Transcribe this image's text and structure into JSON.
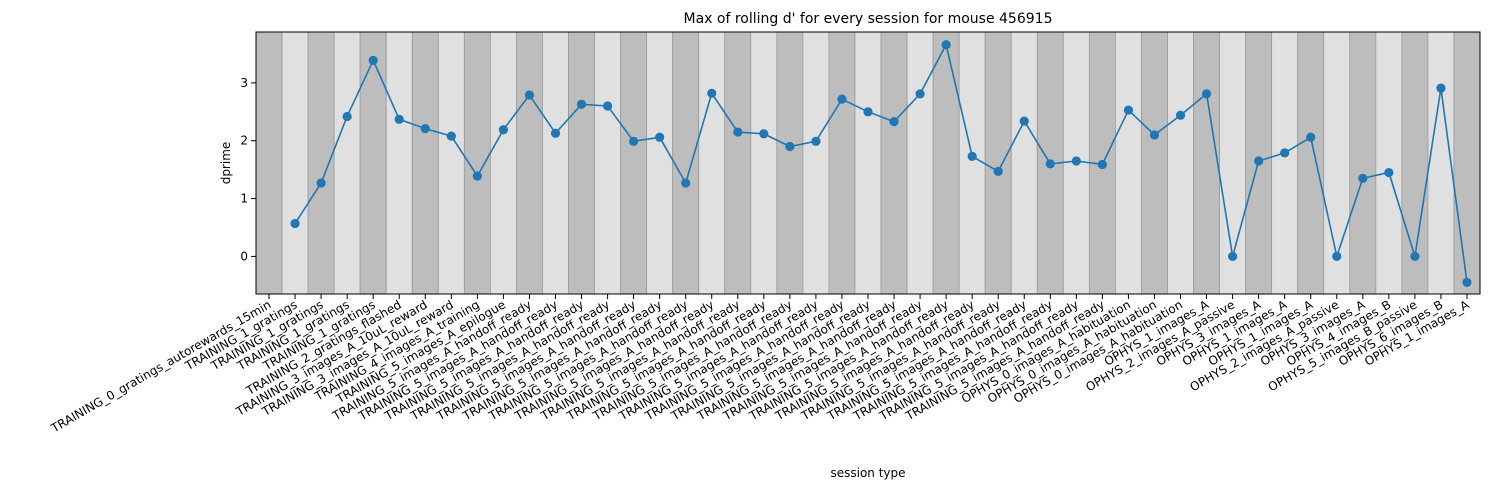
{
  "chart_data": {
    "type": "line",
    "title": "Max of rolling d' for every session for mouse 456915",
    "xlabel": "session type",
    "ylabel": "dprime",
    "ylim": [
      -0.65,
      3.88
    ],
    "yticks": [
      0,
      1,
      2,
      3
    ],
    "grid": false,
    "background_bands": {
      "colors": [
        "#bdbdbd",
        "#e0e0e0"
      ],
      "pattern": "alternating"
    },
    "line_color": "#1f77b4",
    "marker": "circle",
    "categories": [
      "TRAINING_0_gratings_autorewards_15min",
      "TRAINING_1_gratings",
      "TRAINING_1_gratings",
      "TRAINING_1_gratings",
      "TRAINING_1_gratings",
      "TRAINING_2_gratings_flashed",
      "TRAINING_3_images_A_10uL_reward",
      "TRAINING_3_images_A_10uL_reward",
      "TRAINING_4_images_A_training",
      "TRAINING_5_images_A_epilogue",
      "TRAINING_5_images_A_handoff_ready",
      "TRAINING_5_images_A_handoff_ready",
      "TRAINING_5_images_A_handoff_ready",
      "TRAINING_5_images_A_handoff_ready",
      "TRAINING_5_images_A_handoff_ready",
      "TRAINING_5_images_A_handoff_ready",
      "TRAINING_5_images_A_handoff_ready",
      "TRAINING_5_images_A_handoff_ready",
      "TRAINING_5_images_A_handoff_ready",
      "TRAINING_5_images_A_handoff_ready",
      "TRAINING_5_images_A_handoff_ready",
      "TRAINING_5_images_A_handoff_ready",
      "TRAINING_5_images_A_handoff_ready",
      "TRAINING_5_images_A_handoff_ready",
      "TRAINING_5_images_A_handoff_ready",
      "TRAINING_5_images_A_handoff_ready",
      "TRAINING_5_images_A_handoff_ready",
      "TRAINING_5_images_A_handoff_ready",
      "TRAINING_5_images_A_handoff_ready",
      "TRAINING_5_images_A_handoff_ready",
      "TRAINING_5_images_A_handoff_ready",
      "TRAINING_5_images_A_handoff_ready",
      "TRAINING_5_images_A_handoff_ready",
      "OPHYS_0_images_A_habituation",
      "OPHYS_0_images_A_habituation",
      "OPHYS_0_images_A_habituation",
      "OPHYS_1_images_A",
      "OPHYS_2_images_A_passive",
      "OPHYS_3_images_A",
      "OPHYS_1_images_A",
      "OPHYS_1_images_A",
      "OPHYS_2_images_A_passive",
      "OPHYS_3_images_A",
      "OPHYS_4_images_B",
      "OPHYS_5_images_B_passive",
      "OPHYS_6_images_B",
      "OPHYS_1_images_A"
    ],
    "values": [
      null,
      0.57,
      1.27,
      2.42,
      3.39,
      2.37,
      2.21,
      2.08,
      1.39,
      2.19,
      2.79,
      2.13,
      2.63,
      2.6,
      1.99,
      2.06,
      1.27,
      2.82,
      2.15,
      2.12,
      1.9,
      1.99,
      2.72,
      2.5,
      2.33,
      2.81,
      3.66,
      1.73,
      1.47,
      2.34,
      1.6,
      1.65,
      1.59,
      2.53,
      2.1,
      2.44,
      2.81,
      0.0,
      1.65,
      1.79,
      2.06,
      0.0,
      1.35,
      1.45,
      0.0,
      2.91,
      -0.45
    ]
  }
}
